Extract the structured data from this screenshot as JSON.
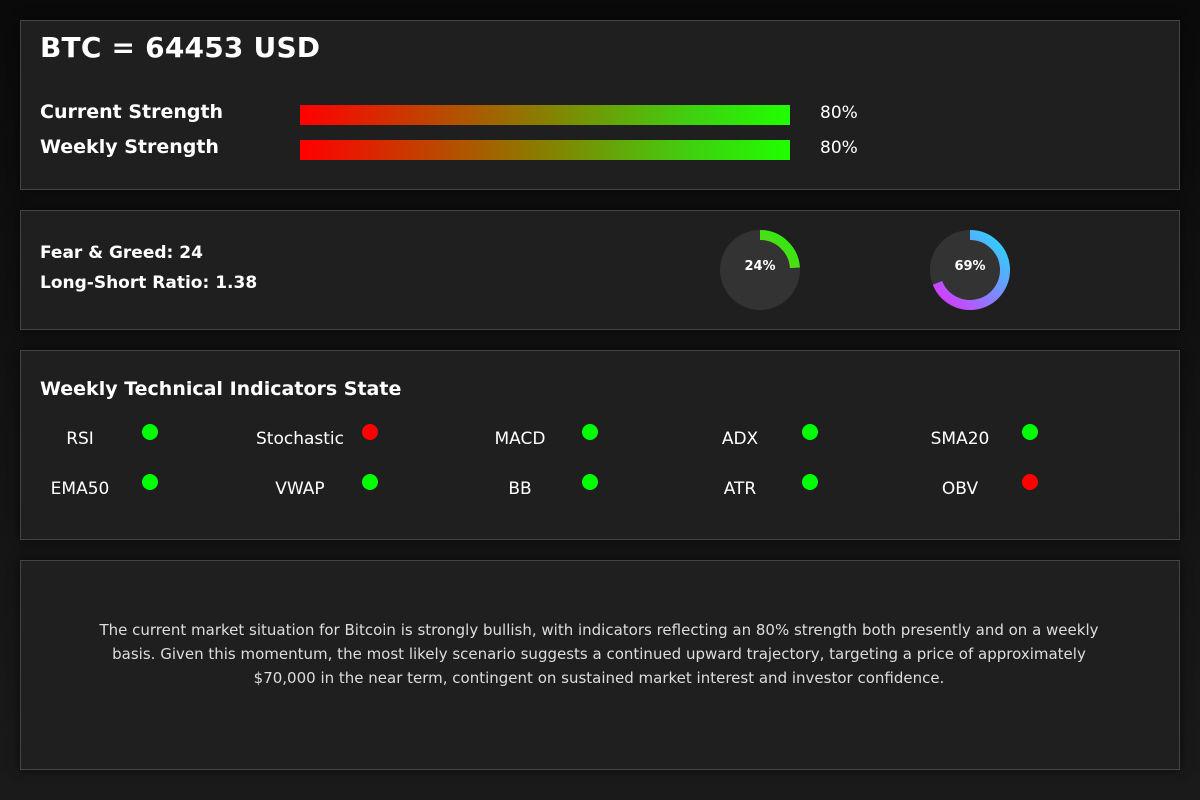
{
  "header": {
    "title": "BTC = 64453 USD"
  },
  "strength": [
    {
      "label": "Current Strength",
      "percent_text": "80%",
      "value": 0.8
    },
    {
      "label": "Weekly Strength",
      "percent_text": "80%",
      "value": 0.8
    }
  ],
  "sentiment": {
    "fear_greed_text": "Fear & Greed: 24",
    "long_short_text": "Long-Short Ratio: 1.38",
    "donuts": [
      {
        "label": "24%",
        "value": 0.24,
        "color_start": "#7acc1a",
        "color_end": "#22ee11"
      },
      {
        "label": "69%",
        "value": 0.69,
        "color_start": "#dd33ff",
        "color_end": "#22ddff"
      }
    ],
    "track_color": "#333333"
  },
  "indicators": {
    "title": "Weekly Technical Indicators State",
    "items": [
      {
        "name": "RSI",
        "state": "green"
      },
      {
        "name": "Stochastic",
        "state": "red"
      },
      {
        "name": "MACD",
        "state": "green"
      },
      {
        "name": "ADX",
        "state": "green"
      },
      {
        "name": "SMA20",
        "state": "green"
      },
      {
        "name": "EMA50",
        "state": "green"
      },
      {
        "name": "VWAP",
        "state": "green"
      },
      {
        "name": "BB",
        "state": "green"
      },
      {
        "name": "ATR",
        "state": "green"
      },
      {
        "name": "OBV",
        "state": "red"
      }
    ],
    "colors": {
      "green": "#00ff00",
      "red": "#ff0000"
    }
  },
  "summary": {
    "text": "The current market situation for Bitcoin is strongly bullish, with indicators reflecting an 80% strength both presently and on a weekly basis. Given this momentum, the most likely scenario suggests a continued upward trajectory, targeting a price of approximately $70,000 in the near term, contingent on sustained market interest and investor confidence."
  }
}
